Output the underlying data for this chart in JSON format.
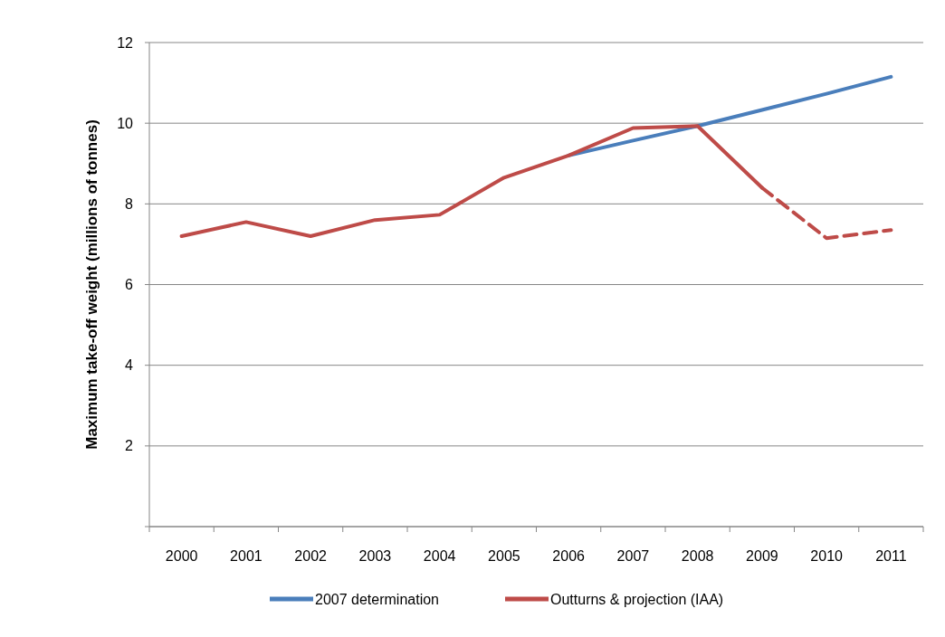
{
  "chart_data": {
    "type": "line",
    "ylabel": "Maximum take-off weight (millions of tonnes)",
    "categories": [
      "2000",
      "2001",
      "2002",
      "2003",
      "2004",
      "2005",
      "2006",
      "2007",
      "2008",
      "2009",
      "2010",
      "2011"
    ],
    "series": [
      {
        "name": "2007 determination",
        "color": "#4a7ebb",
        "values": [
          null,
          null,
          null,
          null,
          null,
          null,
          9.2,
          9.57,
          9.93,
          10.33,
          10.73,
          11.15
        ]
      },
      {
        "name": "Outturns & projection (IAA)",
        "color": "#be4b48",
        "values": [
          7.2,
          7.55,
          7.2,
          7.6,
          7.73,
          8.65,
          9.2,
          9.88,
          9.93,
          8.4,
          null,
          null
        ]
      },
      {
        "color": "#be4b48",
        "line_style": "dashed",
        "values": [
          null,
          null,
          null,
          null,
          null,
          null,
          null,
          null,
          null,
          8.4,
          7.15,
          7.35
        ]
      }
    ],
    "ylim": [
      0,
      12
    ],
    "yticks": [
      {
        "value": 0,
        "label": null
      },
      2,
      4,
      6,
      8,
      10,
      12
    ],
    "grid": "y",
    "legend": "bottom",
    "marker": "none"
  }
}
